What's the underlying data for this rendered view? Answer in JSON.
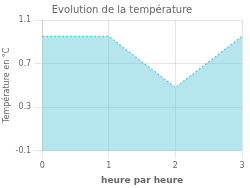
{
  "chart_data": {
    "type": "area",
    "title": "Evolution de la température",
    "x_label": "heure par heure",
    "y_label": "Température en °C",
    "x": [
      0,
      1,
      2,
      3
    ],
    "values": [
      0.95,
      0.95,
      0.48,
      0.95
    ],
    "color": "#5bc8d8",
    "line_style": "dotted",
    "xlim": [
      0,
      3
    ],
    "ylim": [
      -0.1,
      1.1
    ],
    "xticks": [
      0,
      1,
      2,
      3
    ],
    "yticks": [
      -0.1,
      0.3,
      0.7,
      1.1
    ],
    "grid": true
  }
}
